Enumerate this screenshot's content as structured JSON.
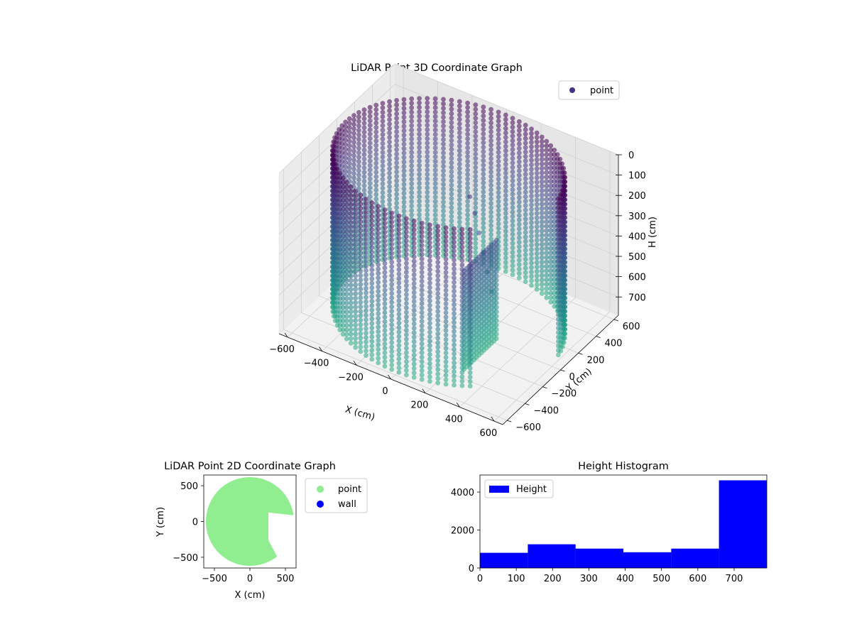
{
  "figure": {
    "background": "#ffffff"
  },
  "chart_data": [
    {
      "type": "scatter",
      "projection": "3d",
      "title": "LiDAR Point 3D Coordinate Graph",
      "xlabel": "X (cm)",
      "ylabel": "Y (cm)",
      "zlabel": "H (cm)",
      "xlim": [
        -650,
        650
      ],
      "ylim": [
        -650,
        650
      ],
      "zlim": [
        0,
        790
      ],
      "z_inverted": true,
      "x_ticks": [
        "−600",
        "−400",
        "−200",
        "0",
        "200",
        "400",
        "600"
      ],
      "y_ticks": [
        "−600",
        "−400",
        "−200",
        "0",
        "200",
        "400",
        "600"
      ],
      "z_ticks": [
        "0",
        "100",
        "200",
        "300",
        "400",
        "500",
        "600",
        "700"
      ],
      "x_tick_values": [
        -600,
        -400,
        -200,
        0,
        200,
        400,
        600
      ],
      "y_tick_values": [
        -600,
        -400,
        -200,
        0,
        200,
        400,
        600
      ],
      "z_tick_values": [
        0,
        100,
        200,
        300,
        400,
        500,
        600,
        700
      ],
      "colormap": "viridis",
      "grid": true,
      "legend": {
        "placement": "top-right",
        "entries": [
          {
            "label": "point",
            "color": "#46327e"
          }
        ]
      },
      "series": [
        {
          "name": "point",
          "shape": "cylindrical wall with cut-out sector",
          "wall_radius": 600,
          "height_range": [
            0,
            790
          ],
          "gap_angle_range_deg": [
            -50,
            8
          ],
          "inner_wall": {
            "x": 260,
            "y_range": [
              -330,
              60
            ]
          },
          "spine_points": [
            [
              60,
              120,
              190
            ],
            [
              100,
              100,
              250
            ],
            [
              140,
              70,
              320
            ],
            [
              180,
              40,
              390
            ],
            [
              220,
              10,
              460
            ],
            [
              260,
              -20,
              530
            ]
          ]
        }
      ]
    },
    {
      "type": "scatter",
      "title": "LiDAR Point 2D Coordinate Graph",
      "xlabel": "X (cm)",
      "ylabel": "Y (cm)",
      "xlim": [
        -650,
        650
      ],
      "ylim": [
        -650,
        650
      ],
      "x_ticks": [
        "−500",
        "0",
        "500"
      ],
      "y_ticks": [
        "−500",
        "0",
        "500"
      ],
      "x_tick_values": [
        -500,
        0,
        500
      ],
      "y_tick_values": [
        -500,
        0,
        500
      ],
      "legend": {
        "placement": "outside-right",
        "entries": [
          {
            "label": "point",
            "color": "#90ee90"
          },
          {
            "label": "wall",
            "color": "#0000ff"
          }
        ]
      },
      "series": [
        {
          "name": "point",
          "color": "#90ee90",
          "region": "disk",
          "radius": 620,
          "cutout_angle_range_deg": [
            -50,
            8
          ],
          "cutout_inner_x": 260
        },
        {
          "name": "wall",
          "color": "#0000ff",
          "count": 0
        }
      ]
    },
    {
      "type": "bar",
      "subtype": "histogram",
      "title": "Height Histogram",
      "xlim": [
        0,
        790
      ],
      "ylim": [
        0,
        4900
      ],
      "x_ticks": [
        "0",
        "100",
        "200",
        "300",
        "400",
        "500",
        "600",
        "700"
      ],
      "y_ticks": [
        "0",
        "2000",
        "4000"
      ],
      "x_tick_values": [
        0,
        100,
        200,
        300,
        400,
        500,
        600,
        700
      ],
      "y_tick_values": [
        0,
        2000,
        4000
      ],
      "bin_edges": [
        0,
        131.7,
        263.3,
        395,
        526.7,
        658.3,
        790
      ],
      "values": [
        800,
        1250,
        1020,
        830,
        1020,
        4620
      ],
      "color": "#0000ff",
      "legend": {
        "placement": "top-left",
        "entries": [
          {
            "label": "Height",
            "color": "#0000ff"
          }
        ]
      }
    }
  ]
}
